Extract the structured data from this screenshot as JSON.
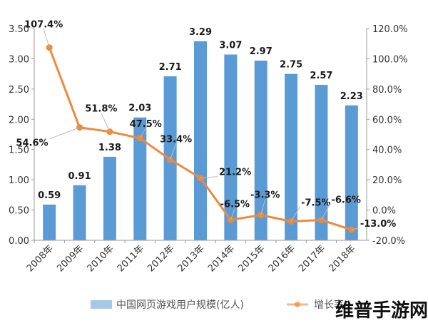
{
  "chart_data": {
    "type": "bar",
    "categories": [
      "2008年",
      "2009年",
      "2010年",
      "2011年",
      "2012年",
      "2013年",
      "2014年",
      "2015年",
      "2016年",
      "2017年",
      "2018年"
    ],
    "series": [
      {
        "name": "中国网页游戏用户规模(亿人)",
        "type": "bar",
        "axis": "left",
        "color": "#5b9bd5",
        "values": [
          0.59,
          0.91,
          1.38,
          2.03,
          2.71,
          3.29,
          3.07,
          2.97,
          2.75,
          2.57,
          2.23
        ],
        "labels": [
          "0.59",
          "0.91",
          "1.38",
          "2.03",
          "2.71",
          "3.29",
          "3.07",
          "2.97",
          "2.75",
          "2.57",
          "2.23"
        ]
      },
      {
        "name": "增长率",
        "type": "line",
        "axis": "right",
        "color": "#ed8a3c",
        "values": [
          107.4,
          54.6,
          51.8,
          47.5,
          33.4,
          21.2,
          -6.5,
          -3.3,
          -7.5,
          -6.6,
          -13.0
        ],
        "labels": [
          "107.4%",
          "54.6%",
          "51.8%",
          "47.5%",
          "33.4%",
          "21.2%",
          "-6.5%",
          "-3.3%",
          "-7.5%",
          "-6.6%",
          "-13.0%"
        ]
      }
    ],
    "y_left": {
      "min": 0,
      "max": 3.5,
      "ticks": [
        "0.00",
        "0.50",
        "1.00",
        "1.50",
        "2.00",
        "2.50",
        "3.00",
        "3.50"
      ]
    },
    "y_right": {
      "min": -20,
      "max": 120,
      "ticks": [
        "-20.0%",
        "0.0%",
        "20.0%",
        "40.0%",
        "60.0%",
        "80.0%",
        "100.0%",
        "120.0%"
      ]
    },
    "title": "",
    "grid": false,
    "legend_position": "bottom"
  },
  "watermark": "维普手游网"
}
